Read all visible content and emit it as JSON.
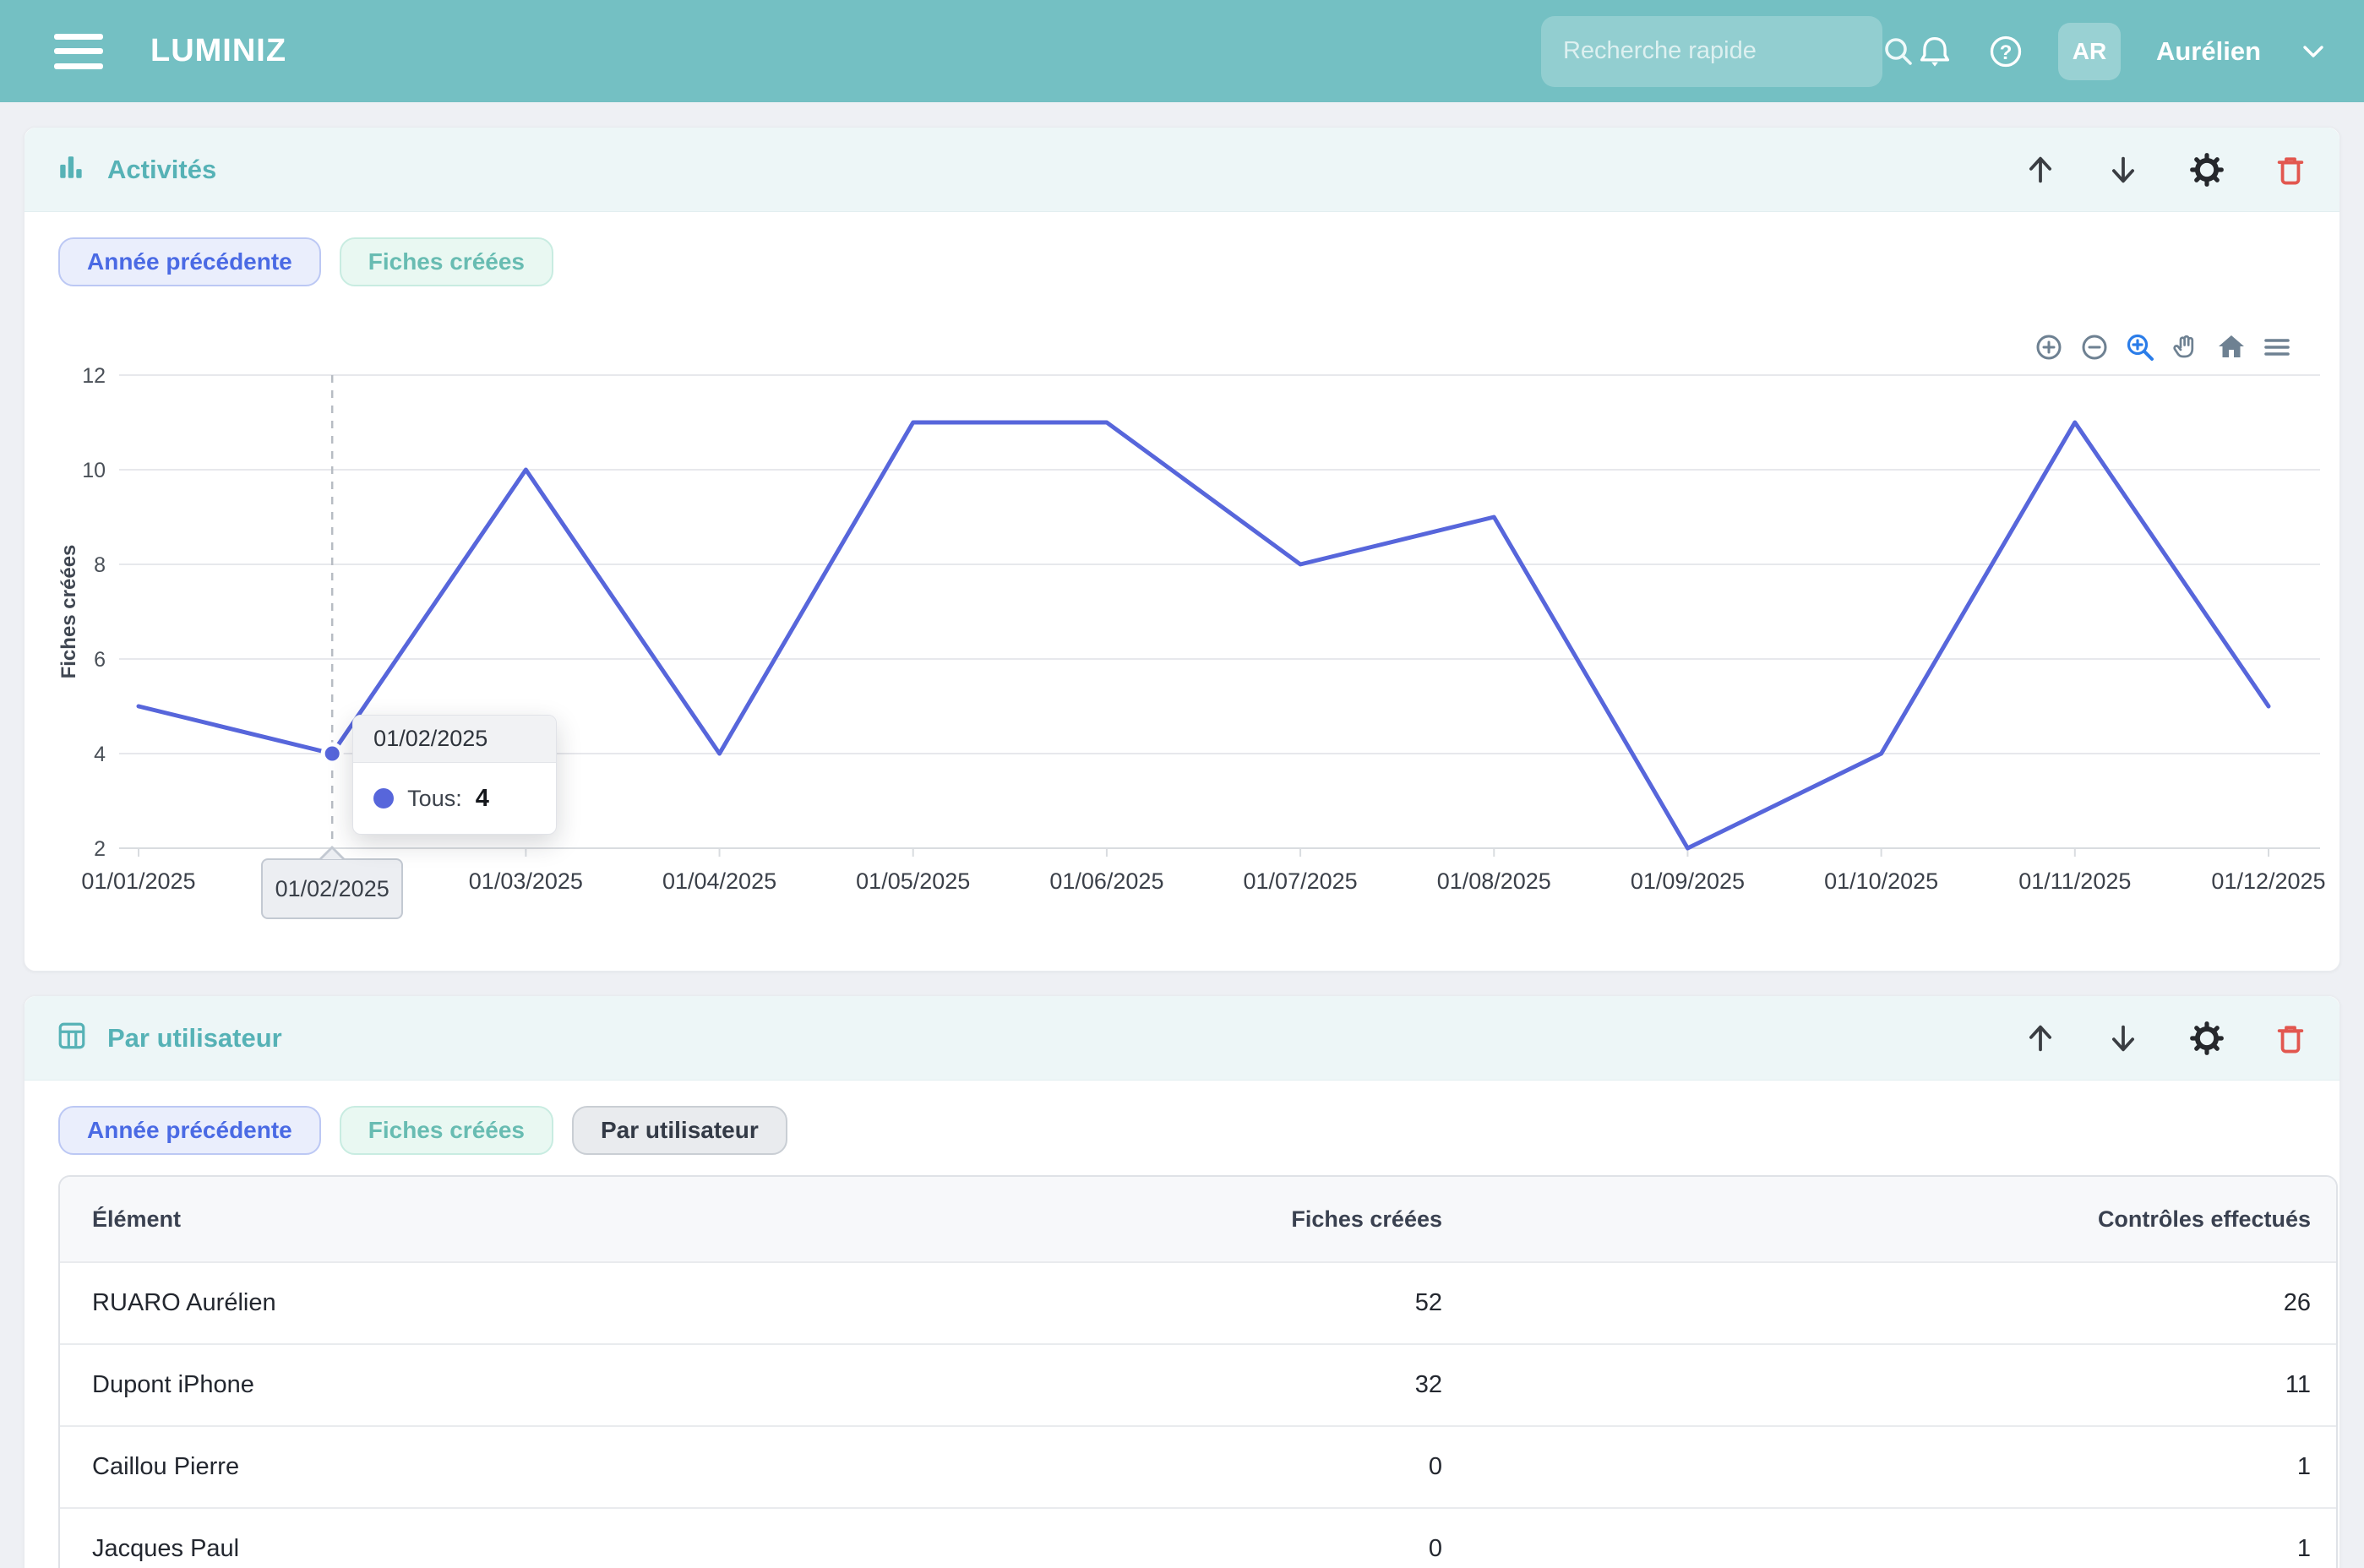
{
  "navbar": {
    "brand": "LUMINIZ",
    "search_placeholder": "Recherche rapide",
    "user_initials": "AR",
    "user_name": "Aurélien"
  },
  "activities_card": {
    "title": "Activités",
    "chips": [
      {
        "label": "Année précédente",
        "style": "blue"
      },
      {
        "label": "Fiches créées",
        "style": "mint"
      }
    ],
    "tooltip": {
      "date": "01/02/2025",
      "series_label": "Tous:",
      "value": "4"
    },
    "xaxis_tooltip": "01/02/2025",
    "toolbar_icons": [
      "zoom-in",
      "zoom-out",
      "selection-zoom",
      "pan",
      "home",
      "menu"
    ],
    "action_icons": [
      "move-up",
      "move-down",
      "settings",
      "delete"
    ]
  },
  "chart_data": {
    "type": "line",
    "x": [
      "01/01/2025",
      "01/02/2025",
      "01/03/2025",
      "01/04/2025",
      "01/05/2025",
      "01/06/2025",
      "01/07/2025",
      "01/08/2025",
      "01/09/2025",
      "01/10/2025",
      "01/11/2025",
      "01/12/2025"
    ],
    "series": [
      {
        "name": "Tous",
        "values": [
          5,
          4,
          10,
          4,
          11,
          11,
          8,
          9,
          2,
          4,
          11,
          5
        ]
      }
    ],
    "title": "",
    "xlabel": "",
    "ylabel": "Fiches créées",
    "ylim": [
      2,
      12
    ],
    "yticks": [
      2,
      4,
      6,
      8,
      10,
      12
    ],
    "grid": true,
    "legend": "none",
    "line_color": "#5766db",
    "highlight_index": 1
  },
  "users_card": {
    "title": "Par utilisateur",
    "chips": [
      {
        "label": "Année précédente",
        "style": "blue"
      },
      {
        "label": "Fiches créées",
        "style": "mint"
      },
      {
        "label": "Par utilisateur",
        "style": "gray"
      }
    ],
    "table": {
      "columns": [
        "Élément",
        "Fiches créées",
        "Contrôles effectués"
      ],
      "rows": [
        [
          "RUARO Aurélien",
          "52",
          "26"
        ],
        [
          "Dupont iPhone",
          "32",
          "11"
        ],
        [
          "Caillou Pierre",
          "0",
          "1"
        ],
        [
          "Jacques Paul",
          "0",
          "1"
        ]
      ]
    },
    "action_icons": [
      "move-up",
      "move-down",
      "settings",
      "delete"
    ]
  },
  "colors": {
    "navbar": "#74c0c3",
    "accent_teal": "#56b2b6",
    "line": "#5766db",
    "chip_blue": "#4a6ae4",
    "chip_mint": "#68bcb2",
    "chip_gray": "#333a46",
    "danger": "#e2574f",
    "toolbar_active": "#2b7de9",
    "toolbar_gray": "#6e8192"
  }
}
